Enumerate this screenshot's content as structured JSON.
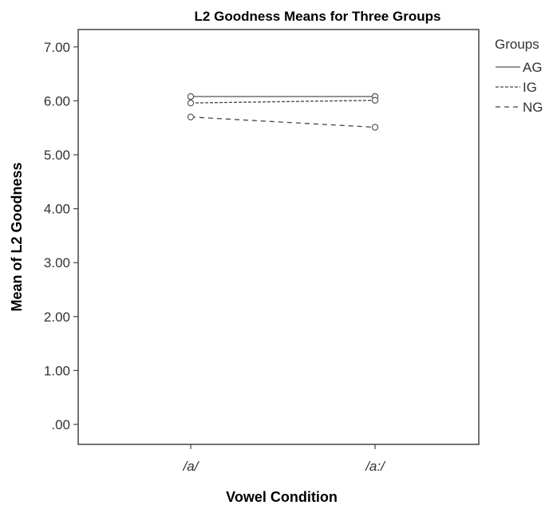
{
  "chart_data": {
    "type": "line",
    "title": "L2 Goodness Means for Three Groups",
    "xlabel": "Vowel Condition",
    "ylabel": "Mean of L2 Goodness",
    "categories": [
      "/a/",
      "/a:/"
    ],
    "ylim": [
      0,
      7.5
    ],
    "yticks": [
      ".00",
      "1.00",
      "2.00",
      "3.00",
      "4.00",
      "5.00",
      "6.00",
      "7.00"
    ],
    "grid": false,
    "legend": {
      "title": "Groups",
      "placement": "right"
    },
    "series": [
      {
        "name": "AG",
        "values": [
          6.08,
          6.08
        ],
        "dash": "solid",
        "color": "#555555"
      },
      {
        "name": "IG",
        "values": [
          5.96,
          6.01
        ],
        "dash": "4,2",
        "color": "#444444"
      },
      {
        "name": "NG",
        "values": [
          5.7,
          5.51
        ],
        "dash": "6,5",
        "color": "#444444"
      }
    ]
  }
}
